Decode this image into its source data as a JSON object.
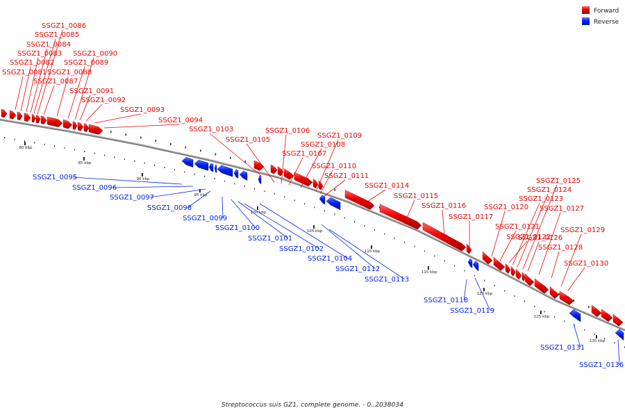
{
  "caption": "Streptococcus suis GZ1, complete genome. - 0..2038034",
  "colors": {
    "forward": "#ee0000",
    "reverse": "#0022ee",
    "backbone": "#808080"
  },
  "legend": [
    {
      "key": "forward",
      "label": "Forward"
    },
    {
      "key": "reverse",
      "label": "Reverse"
    }
  ],
  "ticks": [
    "80 kbp",
    "85 kbp",
    "90 kbp",
    "95 kbp",
    "100 kbp",
    "105 kbp",
    "110 kbp",
    "115 kbp",
    "120 kbp",
    "125 kbp",
    "130 kbp"
  ],
  "genes": [
    {
      "label": "SSGZ1_0081",
      "strand": "forward"
    },
    {
      "label": "SSGZ1_0082",
      "strand": "forward"
    },
    {
      "label": "SSGZ1_0083",
      "strand": "forward"
    },
    {
      "label": "SSGZ1_0084",
      "strand": "forward"
    },
    {
      "label": "SSGZ1_0085",
      "strand": "forward"
    },
    {
      "label": "SSGZ1_0086",
      "strand": "forward"
    },
    {
      "label": "SSGZ1_0087",
      "strand": "forward"
    },
    {
      "label": "SSGZ1_0088",
      "strand": "forward"
    },
    {
      "label": "SSGZ1_0089",
      "strand": "forward"
    },
    {
      "label": "SSGZ1_0090",
      "strand": "forward"
    },
    {
      "label": "SSGZ1_0091",
      "strand": "forward"
    },
    {
      "label": "SSGZ1_0092",
      "strand": "forward"
    },
    {
      "label": "SSGZ1_0093",
      "strand": "forward"
    },
    {
      "label": "SSGZ1_0094",
      "strand": "forward"
    },
    {
      "label": "SSGZ1_0095",
      "strand": "reverse"
    },
    {
      "label": "SSGZ1_0096",
      "strand": "reverse"
    },
    {
      "label": "SSGZ1_0097",
      "strand": "reverse"
    },
    {
      "label": "SSGZ1_0098",
      "strand": "reverse"
    },
    {
      "label": "SSGZ1_0099",
      "strand": "reverse"
    },
    {
      "label": "SSGZ1_0100",
      "strand": "reverse"
    },
    {
      "label": "SSGZ1_0101",
      "strand": "reverse"
    },
    {
      "label": "SSGZ1_0102",
      "strand": "reverse"
    },
    {
      "label": "SSGZ1_0103",
      "strand": "forward"
    },
    {
      "label": "SSGZ1_0104",
      "strand": "reverse"
    },
    {
      "label": "SSGZ1_0105",
      "strand": "forward"
    },
    {
      "label": "SSGZ1_0106",
      "strand": "forward"
    },
    {
      "label": "SSGZ1_0107",
      "strand": "forward"
    },
    {
      "label": "SSGZ1_0108",
      "strand": "forward"
    },
    {
      "label": "SSGZ1_0109",
      "strand": "forward"
    },
    {
      "label": "SSGZ1_0110",
      "strand": "forward"
    },
    {
      "label": "SSGZ1_0111",
      "strand": "forward"
    },
    {
      "label": "SSGZ1_0112",
      "strand": "reverse"
    },
    {
      "label": "SSGZ1_0113",
      "strand": "reverse"
    },
    {
      "label": "SSGZ1_0114",
      "strand": "forward"
    },
    {
      "label": "SSGZ1_0115",
      "strand": "forward"
    },
    {
      "label": "SSGZ1_0116",
      "strand": "forward"
    },
    {
      "label": "SSGZ1_0117",
      "strand": "forward"
    },
    {
      "label": "SSGZ1_0118",
      "strand": "reverse"
    },
    {
      "label": "SSGZ1_0119",
      "strand": "reverse"
    },
    {
      "label": "SSGZ1_0120",
      "strand": "forward"
    },
    {
      "label": "SSGZ1_0121",
      "strand": "forward"
    },
    {
      "label": "SSGZ1_0122",
      "strand": "forward"
    },
    {
      "label": "SSGZ1_0123",
      "strand": "forward"
    },
    {
      "label": "SSGZ1_0124",
      "strand": "forward"
    },
    {
      "label": "SSGZ1_0125",
      "strand": "forward"
    },
    {
      "label": "SSGZ1_0126",
      "strand": "forward"
    },
    {
      "label": "SSGZ1_0127",
      "strand": "forward"
    },
    {
      "label": "SSGZ1_0128",
      "strand": "forward"
    },
    {
      "label": "SSGZ1_0129",
      "strand": "forward"
    },
    {
      "label": "SSGZ1_0130",
      "strand": "forward"
    },
    {
      "label": "SSGZ1_0131",
      "strand": "reverse"
    },
    {
      "label": "SSGZ1_0136",
      "strand": "reverse"
    }
  ]
}
